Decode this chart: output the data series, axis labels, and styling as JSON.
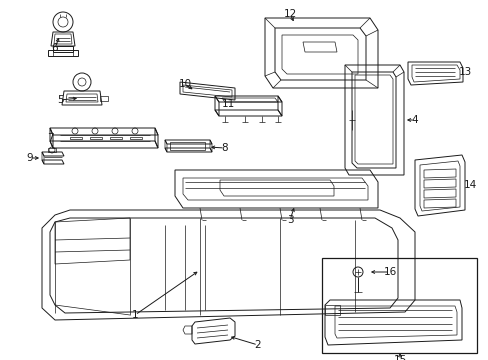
{
  "bg_color": "#ffffff",
  "line_color": "#1a1a1a",
  "lw": 0.7,
  "fig_w": 4.89,
  "fig_h": 3.6,
  "dpi": 100
}
